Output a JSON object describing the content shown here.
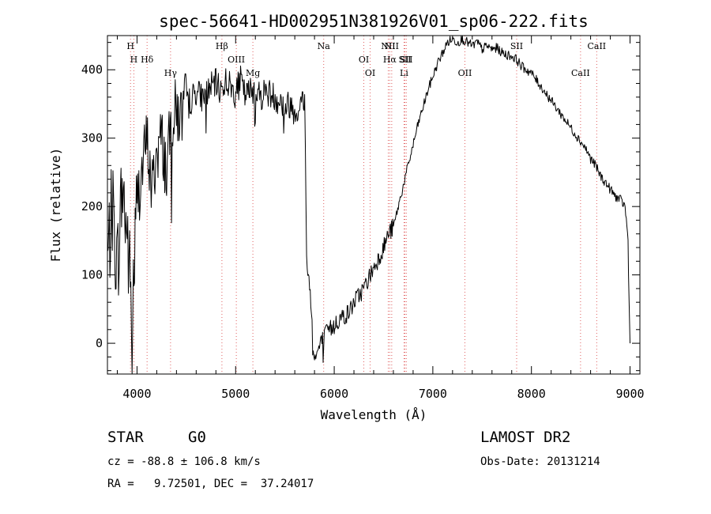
{
  "chart_data": {
    "type": "line",
    "title": "spec-56641-HD002951N381926V01_sp06-222.fits",
    "xlabel": "Wavelength (Å)",
    "ylabel": "Flux (relative)",
    "xlim": [
      3700,
      9100
    ],
    "ylim": [
      -45,
      450
    ],
    "x_ticks": [
      4000,
      5000,
      6000,
      7000,
      8000,
      9000
    ],
    "y_ticks": [
      0,
      100,
      200,
      300,
      400
    ],
    "x_minor_step": 200,
    "y_minor_step": 20,
    "grid": false,
    "line_color": "#000000",
    "marker_color": "#e06060",
    "spectral_lines": [
      {
        "label": "H",
        "x": 3934,
        "row": 0
      },
      {
        "label": "H",
        "x": 3968,
        "row": 1
      },
      {
        "label": "Hδ",
        "x": 4102,
        "row": 1
      },
      {
        "label": "Hγ",
        "x": 4340,
        "row": 2
      },
      {
        "label": "Hβ",
        "x": 4861,
        "row": 0
      },
      {
        "label": "OIII",
        "x": 5007,
        "row": 1
      },
      {
        "label": "Mg",
        "x": 5175,
        "row": 2
      },
      {
        "label": "Na",
        "x": 5893,
        "row": 0
      },
      {
        "label": "OI",
        "x": 6300,
        "row": 1
      },
      {
        "label": "OI",
        "x": 6364,
        "row": 2
      },
      {
        "label": "NII",
        "x": 6548,
        "row": 0
      },
      {
        "label": "Hα",
        "x": 6563,
        "row": 1
      },
      {
        "label": "NII",
        "x": 6583,
        "row": 0
      },
      {
        "label": "Li",
        "x": 6708,
        "row": 2
      },
      {
        "label": "SII",
        "x": 6717,
        "row": 1
      },
      {
        "label": "SII",
        "x": 6731,
        "row": 1
      },
      {
        "label": "OII",
        "x": 7325,
        "row": 2
      },
      {
        "label": "SII",
        "x": 7850,
        "row": 0
      },
      {
        "label": "CaII",
        "x": 8498,
        "row": 2
      },
      {
        "label": "CaII",
        "x": 8662,
        "row": 0
      }
    ],
    "series": [
      {
        "x": [
          3700,
          3750,
          3800,
          3850,
          3900,
          3950,
          4000,
          4050,
          4100,
          4150,
          4200,
          4250,
          4300,
          4350,
          4400,
          4450,
          4500,
          4550,
          4600,
          4650,
          4700,
          4750,
          4800,
          4850,
          4900,
          4950,
          5000,
          5050,
          5100,
          5150,
          5200,
          5250,
          5300,
          5350,
          5400,
          5450,
          5500,
          5550,
          5600,
          5650,
          5700,
          5720,
          5750,
          5800,
          5850,
          5900,
          5950,
          6000,
          6050,
          6100,
          6150,
          6200,
          6250,
          6300,
          6350,
          6400,
          6450,
          6500,
          6550,
          6600,
          6650,
          6700,
          6750,
          6800,
          6850,
          6900,
          6950,
          7000,
          7050,
          7100,
          7150,
          7200,
          7250,
          7300,
          7350,
          7400,
          7450,
          7500,
          7550,
          7600,
          7650,
          7700,
          7750,
          7800,
          7850,
          7900,
          7950,
          8000,
          8050,
          8100,
          8150,
          8200,
          8250,
          8300,
          8350,
          8400,
          8450,
          8500,
          8550,
          8600,
          8650,
          8700,
          8750,
          8800,
          8850,
          8900,
          8950,
          8980,
          8990,
          9000
        ],
        "y": [
          120,
          200,
          110,
          230,
          160,
          40,
          210,
          250,
          300,
          220,
          280,
          300,
          250,
          330,
          340,
          330,
          360,
          355,
          370,
          360,
          365,
          375,
          380,
          370,
          385,
          375,
          365,
          385,
          360,
          370,
          375,
          360,
          370,
          365,
          360,
          355,
          345,
          350,
          340,
          345,
          360,
          125,
          85,
          -25,
          -5,
          10,
          20,
          25,
          35,
          40,
          45,
          60,
          70,
          80,
          95,
          110,
          125,
          140,
          160,
          170,
          200,
          230,
          260,
          290,
          320,
          345,
          370,
          390,
          410,
          425,
          440,
          445,
          440,
          445,
          440,
          435,
          440,
          430,
          435,
          430,
          432,
          425,
          422,
          420,
          415,
          405,
          400,
          395,
          385,
          375,
          365,
          355,
          345,
          335,
          325,
          315,
          305,
          295,
          285,
          270,
          260,
          245,
          235,
          225,
          215,
          210,
          200,
          150,
          60,
          0
        ]
      }
    ]
  },
  "info": {
    "class_label": "STAR",
    "subclass": "G0",
    "survey": "LAMOST DR2",
    "cz": "cz = -88.8 ± 106.8 km/s",
    "obs_date": "Obs-Date: 20131214",
    "coords": "RA =   9.72501, DEC =  37.24017"
  }
}
